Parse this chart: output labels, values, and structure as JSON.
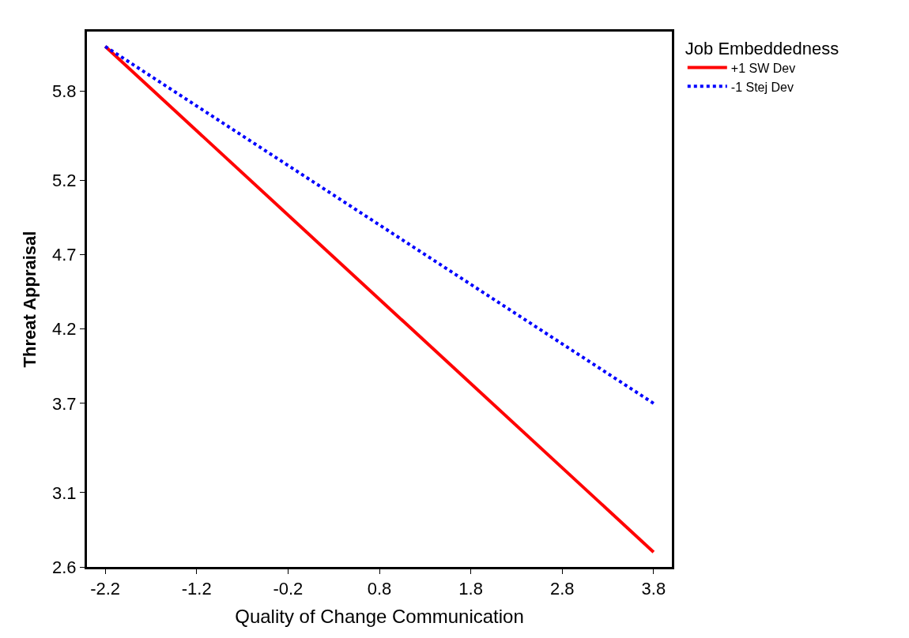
{
  "chart_data": {
    "type": "line",
    "xlabel": "Quality of Change Communication",
    "ylabel": "Threat Appraisal",
    "legend_title": "Job Embeddedness",
    "x": [
      -2.2,
      3.8
    ],
    "series": [
      {
        "name": "+1 SW Dev",
        "color": "#ff0000",
        "line_style": "solid",
        "values": [
          6.1,
          2.7
        ]
      },
      {
        "name": "-1 Stej Dev",
        "color": "#0000ff",
        "line_style": "dotted",
        "values": [
          6.1,
          3.7
        ]
      }
    ],
    "xlim": [
      -2.4,
      4.0
    ],
    "xticks": [
      -2.2,
      -1.2,
      -0.2,
      0.8,
      1.8,
      2.8,
      3.8
    ],
    "ylim": [
      2.6,
      6.2
    ],
    "yticks": [
      2.6,
      3.1,
      3.7,
      4.2,
      4.7,
      5.2,
      5.8
    ],
    "legend": "top right",
    "marker": "none"
  }
}
